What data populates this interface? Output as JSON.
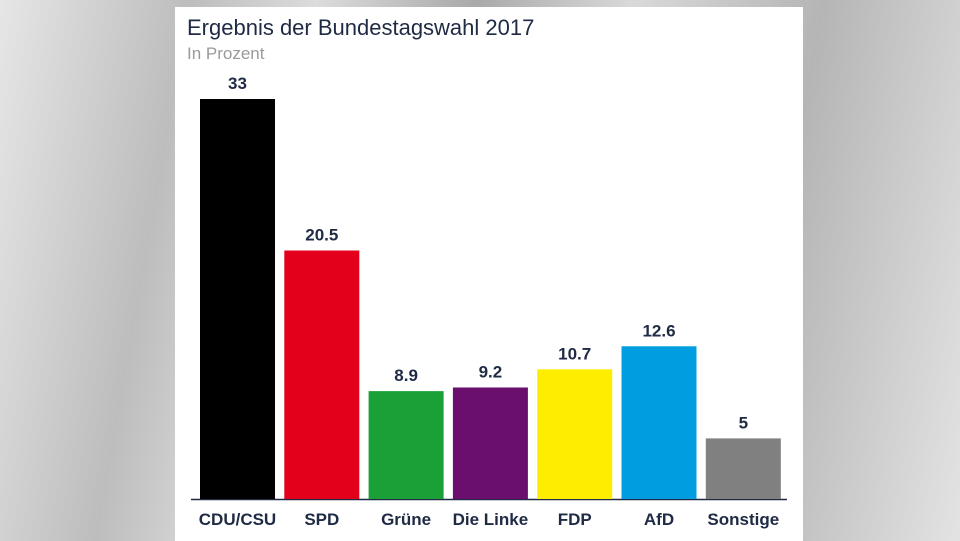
{
  "chart_data": {
    "type": "bar",
    "title": "Ergebnis der Bundestagswahl 2017",
    "subtitle": "In Prozent",
    "categories": [
      "CDU/CSU",
      "SPD",
      "Grüne",
      "Die Linke",
      "FDP",
      "AfD",
      "Sonstige"
    ],
    "values": [
      33,
      20.5,
      8.9,
      9.2,
      10.7,
      12.6,
      5
    ],
    "value_labels": [
      "33",
      "20.5",
      "8.9",
      "9.2",
      "10.7",
      "12.6",
      "5"
    ],
    "colors": [
      "#000000",
      "#e3001b",
      "#1aa037",
      "#6a0f6e",
      "#ffed00",
      "#009ee0",
      "#808080"
    ],
    "ylim": [
      0,
      33
    ],
    "grid": false,
    "legend": "none"
  }
}
